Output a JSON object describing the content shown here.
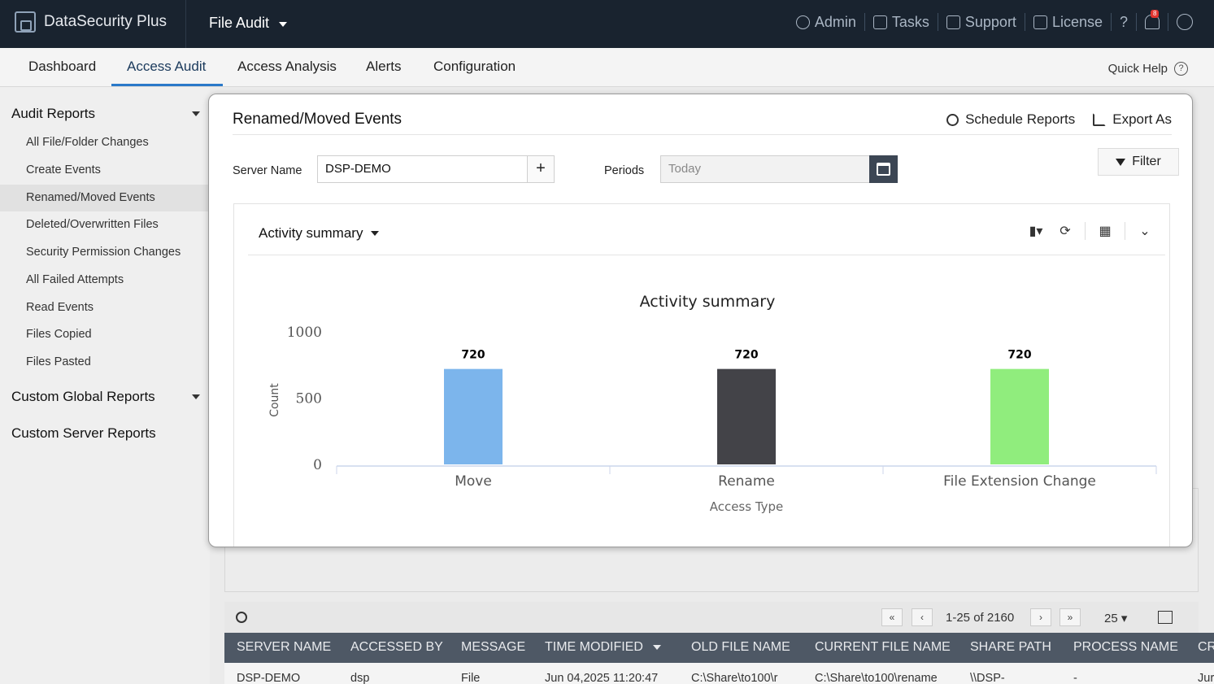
{
  "app": {
    "name": "DataSecurity Plus",
    "module": "File Audit"
  },
  "topnav": {
    "admin": "Admin",
    "tasks": "Tasks",
    "support": "Support",
    "license": "License",
    "help": "?",
    "notifications": "8"
  },
  "tabs": [
    "Dashboard",
    "Access Audit",
    "Access Analysis",
    "Alerts",
    "Configuration"
  ],
  "active_tab": "Access Audit",
  "quick_help": "Quick Help",
  "sidebar": {
    "audit_reports": "Audit Reports",
    "items": [
      "All File/Folder Changes",
      "Create Events",
      "Renamed/Moved Events",
      "Deleted/Overwritten Files",
      "Security Permission Changes",
      "All Failed Attempts",
      "Read Events",
      "Files Copied",
      "Files Pasted"
    ],
    "active_item": "Renamed/Moved Events",
    "custom_global": "Custom Global Reports",
    "custom_server": "Custom Server Reports"
  },
  "modal": {
    "title": "Renamed/Moved Events",
    "schedule": "Schedule Reports",
    "export": "Export As",
    "server_label": "Server Name",
    "server_value": "DSP-DEMO",
    "plus": "+",
    "periods_label": "Periods",
    "periods_value": "Today",
    "filter": "Filter",
    "card_title": "Activity summary"
  },
  "chart_data": {
    "type": "bar",
    "title": "Activity summary",
    "categories": [
      "Move",
      "Rename",
      "File Extension Change"
    ],
    "values": [
      720,
      720,
      720
    ],
    "data_labels": [
      "720",
      "720",
      "720"
    ],
    "colors": [
      "#7cb5ec",
      "#434348",
      "#90ed7d"
    ],
    "xlabel": "Access Type",
    "ylabel": "Count",
    "yticks": [
      "0",
      "500",
      "1000"
    ],
    "ylim": [
      0,
      1000
    ],
    "grid": false,
    "legend": "none"
  },
  "pager": {
    "range": "1-25 of 2160",
    "page_size": "25"
  },
  "table": {
    "headers": [
      "SERVER NAME",
      "ACCESSED BY",
      "MESSAGE",
      "TIME MODIFIED",
      "OLD FILE NAME",
      "CURRENT FILE NAME",
      "SHARE PATH",
      "PROCESS NAME",
      "CR"
    ],
    "row": [
      "DSP-DEMO",
      "dsp",
      "File",
      "Jun 04,2025 11:20:47",
      "C:\\Share\\to100\\r",
      "C:\\Share\\to100\\rename",
      "\\\\DSP-",
      "-",
      "Jur"
    ]
  }
}
